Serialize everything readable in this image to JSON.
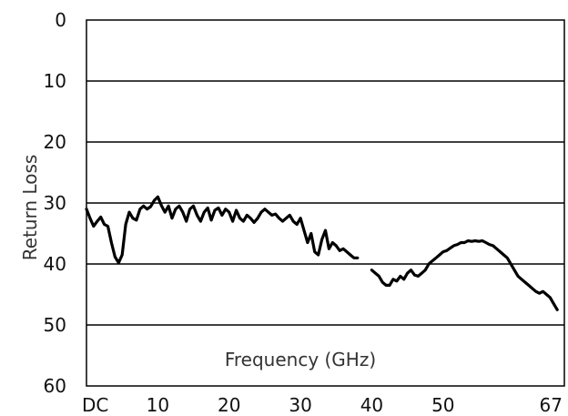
{
  "chart_data": {
    "type": "line",
    "xlabel": "Frequency (GHz)",
    "ylabel": "Return Loss",
    "xlim": [
      0,
      67
    ],
    "ylim": [
      0,
      60
    ],
    "y_inverted": true,
    "grid": "horizontal",
    "y_ticks": [
      "0",
      "10",
      "20",
      "30",
      "40",
      "50",
      "60"
    ],
    "x_ticks": [
      {
        "value": 0,
        "label": "DC"
      },
      {
        "value": 10,
        "label": "10"
      },
      {
        "value": 20,
        "label": "20"
      },
      {
        "value": 30,
        "label": "30"
      },
      {
        "value": 40,
        "label": "40"
      },
      {
        "value": 50,
        "label": "50"
      },
      {
        "value": 67,
        "label": "67"
      }
    ],
    "series": [
      {
        "points": [
          [
            0,
            31
          ],
          [
            0.5,
            32.5
          ],
          [
            1,
            33.8
          ],
          [
            1.5,
            33.0
          ],
          [
            2,
            32.3
          ],
          [
            2.5,
            33.5
          ],
          [
            3,
            33.8
          ],
          [
            3.5,
            36.5
          ],
          [
            4,
            38.8
          ],
          [
            4.5,
            39.8
          ],
          [
            5,
            38.5
          ],
          [
            5.5,
            33.5
          ],
          [
            6,
            31.5
          ],
          [
            6.5,
            32.5
          ],
          [
            7,
            32.8
          ],
          [
            7.5,
            31.0
          ],
          [
            8,
            30.5
          ],
          [
            8.5,
            31.0
          ],
          [
            9,
            30.6
          ],
          [
            9.5,
            29.6
          ],
          [
            10,
            29.0
          ],
          [
            10.5,
            30.4
          ],
          [
            11,
            31.5
          ],
          [
            11.5,
            30.5
          ],
          [
            12,
            32.5
          ],
          [
            12.5,
            31.0
          ],
          [
            13,
            30.5
          ],
          [
            13.5,
            31.5
          ],
          [
            14,
            33.0
          ],
          [
            14.5,
            31.0
          ],
          [
            15,
            30.5
          ],
          [
            15.5,
            32.0
          ],
          [
            16,
            33.0
          ],
          [
            16.5,
            31.5
          ],
          [
            17,
            30.8
          ],
          [
            17.5,
            32.8
          ],
          [
            18,
            31.2
          ],
          [
            18.5,
            30.8
          ],
          [
            19,
            32.0
          ],
          [
            19.5,
            31.0
          ],
          [
            20,
            31.5
          ],
          [
            20.5,
            33.0
          ],
          [
            21,
            31.2
          ],
          [
            21.5,
            32.5
          ],
          [
            22,
            33.0
          ],
          [
            22.5,
            32.0
          ],
          [
            23,
            32.5
          ],
          [
            23.5,
            33.2
          ],
          [
            24,
            32.5
          ],
          [
            24.5,
            31.5
          ],
          [
            25,
            31.0
          ],
          [
            25.5,
            31.5
          ],
          [
            26,
            32.0
          ],
          [
            26.5,
            31.8
          ],
          [
            27,
            32.5
          ],
          [
            27.5,
            33.0
          ],
          [
            28,
            32.5
          ],
          [
            28.5,
            32.0
          ],
          [
            29,
            33.0
          ],
          [
            29.5,
            33.5
          ],
          [
            30,
            32.5
          ],
          [
            30.5,
            34.5
          ],
          [
            31,
            36.5
          ],
          [
            31.5,
            35.0
          ],
          [
            32,
            38.0
          ],
          [
            32.5,
            38.5
          ],
          [
            33,
            36.0
          ],
          [
            33.5,
            34.5
          ],
          [
            34,
            37.5
          ],
          [
            34.5,
            36.5
          ],
          [
            35,
            37.0
          ],
          [
            35.5,
            37.8
          ],
          [
            36,
            37.5
          ],
          [
            36.5,
            38.0
          ],
          [
            37,
            38.5
          ],
          [
            37.5,
            39.0
          ],
          [
            38,
            39.0
          ]
        ]
      },
      {
        "points": [
          [
            40,
            41.0
          ],
          [
            40.5,
            41.5
          ],
          [
            41,
            42.0
          ],
          [
            41.5,
            43.0
          ],
          [
            42,
            43.5
          ],
          [
            42.5,
            43.5
          ],
          [
            43,
            42.5
          ],
          [
            43.5,
            42.8
          ],
          [
            44,
            42.0
          ],
          [
            44.5,
            42.5
          ],
          [
            45,
            41.5
          ],
          [
            45.5,
            41.0
          ],
          [
            46,
            41.8
          ],
          [
            46.5,
            42.0
          ],
          [
            47,
            41.5
          ],
          [
            47.5,
            41.0
          ],
          [
            48,
            40.0
          ],
          [
            48.5,
            39.5
          ],
          [
            49,
            39.0
          ],
          [
            49.5,
            38.5
          ],
          [
            50,
            38.0
          ],
          [
            50.5,
            37.8
          ],
          [
            51,
            37.4
          ],
          [
            51.5,
            37.0
          ],
          [
            52,
            36.8
          ],
          [
            52.5,
            36.5
          ],
          [
            53,
            36.5
          ],
          [
            53.5,
            36.2
          ],
          [
            54,
            36.3
          ],
          [
            54.5,
            36.2
          ],
          [
            55,
            36.3
          ],
          [
            55.5,
            36.2
          ],
          [
            56,
            36.5
          ],
          [
            56.5,
            36.8
          ],
          [
            57,
            37.0
          ],
          [
            57.5,
            37.5
          ],
          [
            58,
            38.0
          ],
          [
            58.5,
            38.5
          ],
          [
            59,
            39.0
          ],
          [
            59.5,
            40.0
          ],
          [
            60,
            41.0
          ],
          [
            60.5,
            42.0
          ],
          [
            61,
            42.5
          ],
          [
            61.5,
            43.0
          ],
          [
            62,
            43.5
          ],
          [
            62.5,
            44.0
          ],
          [
            63,
            44.5
          ],
          [
            63.5,
            44.8
          ],
          [
            64,
            44.5
          ],
          [
            64.5,
            45.0
          ],
          [
            65,
            45.5
          ],
          [
            65.5,
            46.5
          ],
          [
            66,
            47.5
          ]
        ]
      }
    ]
  }
}
